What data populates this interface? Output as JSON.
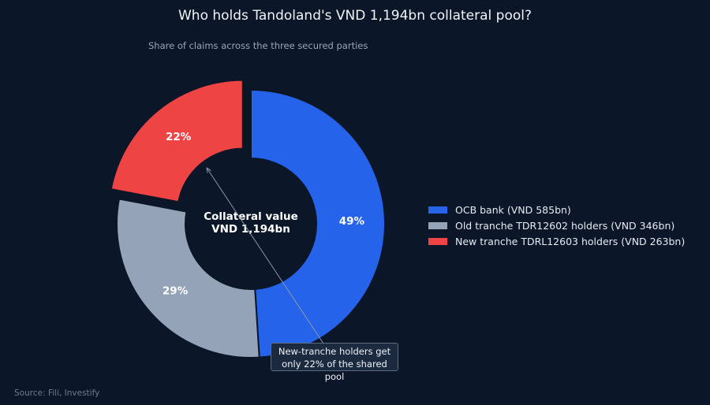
{
  "title": "Who holds Tandoland's VND 1,194bn collateral pool?",
  "subtitle": "Share of claims across the three secured parties",
  "source": "Source: Fili, Investify",
  "center_label": {
    "line1": "Collateral value",
    "line2": "VND 1,194bn"
  },
  "annotation": {
    "line1": "New-tranche holders get",
    "line2": "only 22% of the shared pool"
  },
  "chart_data": {
    "type": "pie",
    "donut": true,
    "title": "Who holds Tandoland's VND 1,194bn collateral pool?",
    "subtitle": "Share of claims across the three secured parties",
    "total": 1194,
    "unit": "VND bn",
    "legend_position": "right",
    "slices": [
      {
        "name": "OCB bank (VND 585bn)",
        "value": 585,
        "percent_label": "49%",
        "color": "#2563eb",
        "pulled": false
      },
      {
        "name": "Old tranche TDR12602 holders (VND 346bn)",
        "value": 346,
        "percent_label": "29%",
        "color": "#94a3b8",
        "pulled": false
      },
      {
        "name": "New tranche TDRL12603 holders (VND 263bn)",
        "value": 263,
        "percent_label": "22%",
        "color": "#ef4444",
        "pulled": true
      }
    ]
  }
}
